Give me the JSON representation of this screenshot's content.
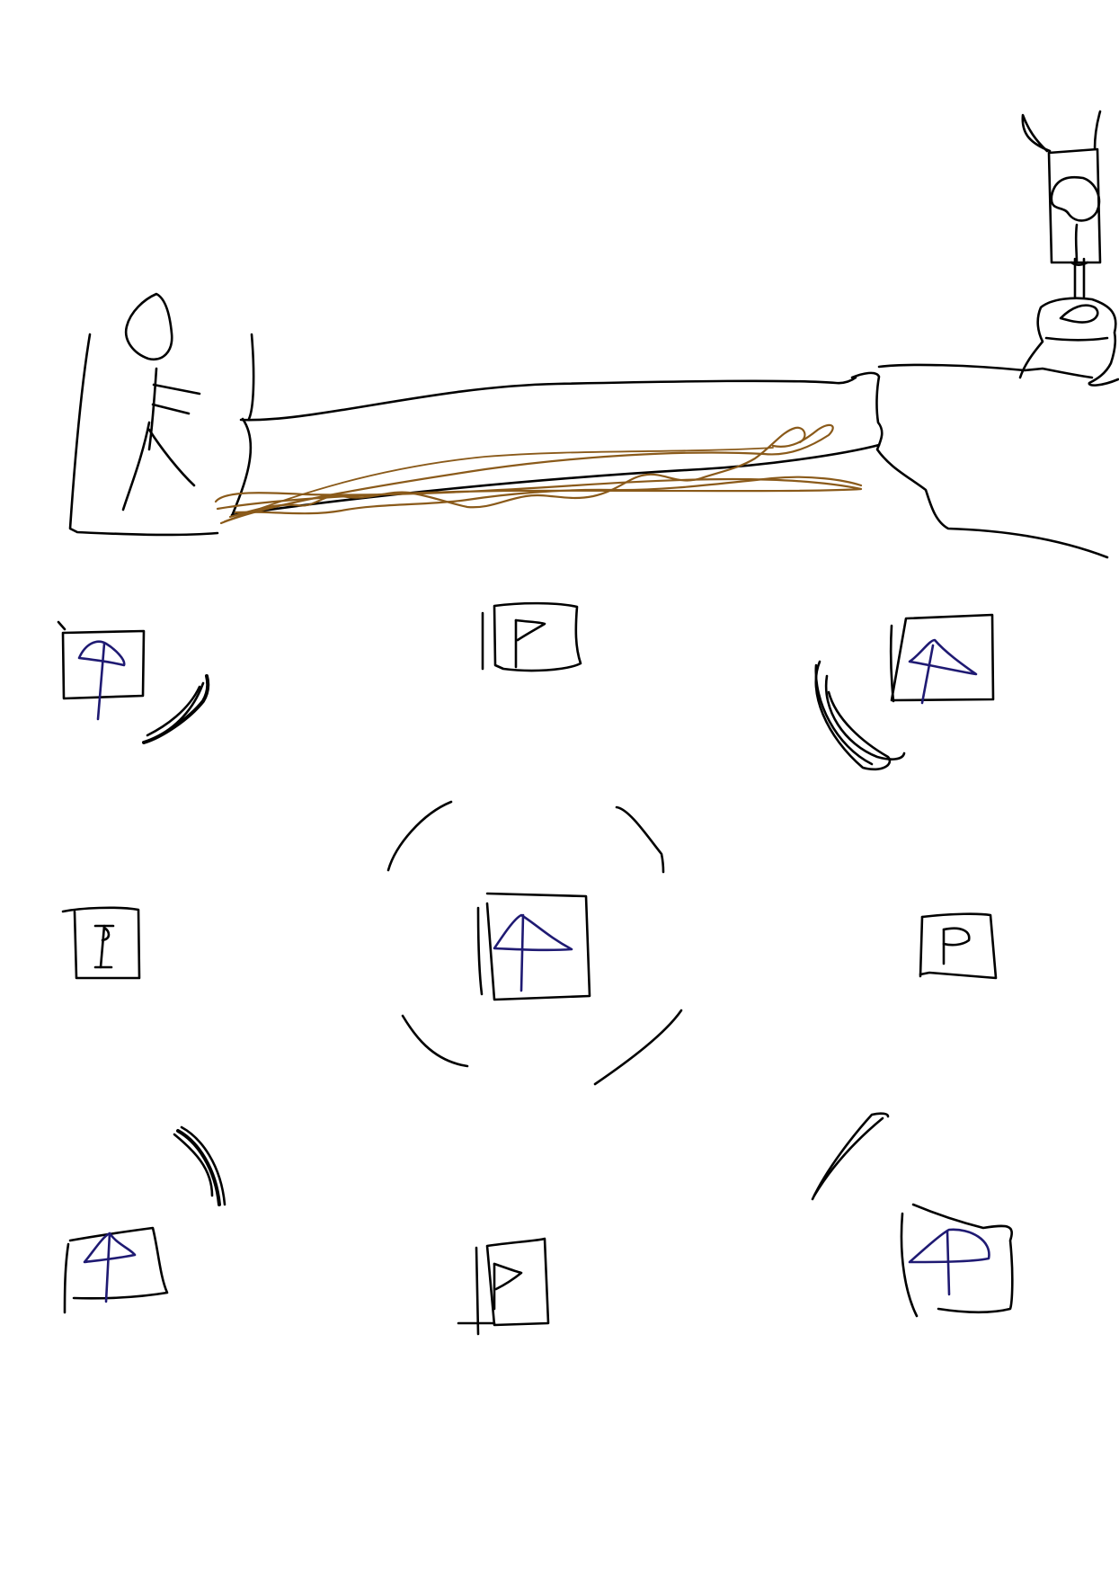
{
  "sketch": {
    "colors": {
      "ink": "#000000",
      "blue_ink": "#1f1a73",
      "brown_ink": "#8a5a1a",
      "background": "#ffffff"
    },
    "tiles": [
      {
        "id": "top-left",
        "symbol": "umbrella",
        "ink": "blue"
      },
      {
        "id": "top-center",
        "symbol": "flag",
        "ink": "black"
      },
      {
        "id": "top-right",
        "symbol": "umbrella",
        "ink": "blue"
      },
      {
        "id": "middle-left",
        "symbol": "flag",
        "ink": "black"
      },
      {
        "id": "center",
        "symbol": "umbrella",
        "ink": "blue"
      },
      {
        "id": "middle-right",
        "symbol": "flag",
        "ink": "black"
      },
      {
        "id": "bottom-left",
        "symbol": "umbrella",
        "ink": "blue"
      },
      {
        "id": "bottom-center",
        "symbol": "flag",
        "ink": "black"
      },
      {
        "id": "bottom-right",
        "symbol": "umbrella",
        "ink": "blue"
      }
    ]
  }
}
